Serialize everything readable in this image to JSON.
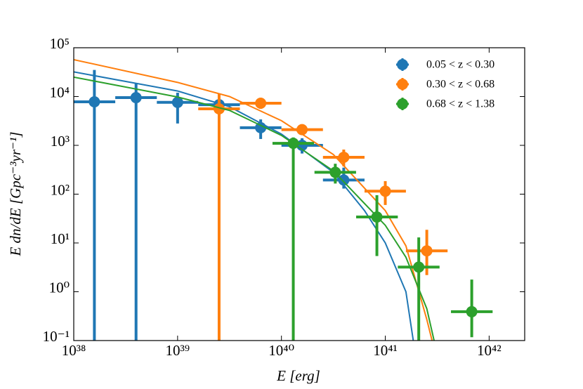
{
  "chart_data": {
    "type": "errorbar",
    "xlabel": "E [erg]",
    "ylabel": "E dn/dE [Gpc⁻³yr⁻¹]",
    "xscale": "log",
    "yscale": "log",
    "xlim": [
      1e+38,
      2.2e+42
    ],
    "ylim": [
      0.1,
      100000
    ],
    "xticks": [
      {
        "value": 1e+38,
        "label": "10³⁸"
      },
      {
        "value": 1e+39,
        "label": "10³⁹"
      },
      {
        "value": 1e+40,
        "label": "10⁴⁰"
      },
      {
        "value": 1e+41,
        "label": "10⁴¹"
      },
      {
        "value": 1e+42,
        "label": "10⁴²"
      }
    ],
    "yticks": [
      {
        "value": 0.1,
        "label": "10⁻¹"
      },
      {
        "value": 1,
        "label": "10⁰"
      },
      {
        "value": 10,
        "label": "10¹"
      },
      {
        "value": 100,
        "label": "10²"
      },
      {
        "value": 1000,
        "label": "10³"
      },
      {
        "value": 10000,
        "label": "10⁴"
      },
      {
        "value": 100000,
        "label": "10⁵"
      }
    ],
    "legend": "upper right",
    "series": [
      {
        "name": "0.05 < z < 0.30",
        "color": "#1f77b4",
        "x": [
          1.58e+38,
          3.98e+38,
          1e+39,
          2.51e+39,
          6.31e+39,
          1.58e+40,
          3.98e+40
        ],
        "x_low": [
          1e+38,
          2.51e+38,
          6.31e+38,
          1.58e+39,
          3.98e+39,
          1e+40,
          2.51e+40
        ],
        "x_high": [
          2.51e+38,
          6.31e+38,
          1.58e+39,
          3.98e+39,
          1e+40,
          2.51e+40,
          6.31e+40
        ],
        "values": [
          7800,
          9500,
          7600,
          6800,
          2300,
          1000,
          195
        ],
        "y_low": [
          0,
          0,
          2800,
          5400,
          1350,
          680,
          130
        ],
        "y_high": [
          35000,
          19000,
          12000,
          8500,
          3400,
          1400,
          350
        ],
        "fit": {
          "x": [
            1e+38,
            1e+39,
            3.16e+39,
            1e+40,
            3.16e+40,
            6.31e+40,
            1e+41,
            1.58e+41,
            1.86e+41
          ],
          "values": [
            32000,
            13000,
            6200,
            1700,
            280,
            46,
            10,
            1.0,
            0.1
          ]
        }
      },
      {
        "name": "0.30 < z < 0.68",
        "color": "#ff7f0e",
        "x": [
          2.51e+39,
          6.31e+39,
          1.58e+40,
          3.98e+40,
          1e+41,
          2.51e+41
        ],
        "x_low": [
          1.58e+39,
          3.98e+39,
          1e+40,
          2.51e+40,
          6.31e+40,
          1.58e+41
        ],
        "x_high": [
          3.98e+39,
          1e+40,
          2.51e+40,
          6.31e+40,
          1.58e+41,
          3.98e+41
        ],
        "values": [
          5600,
          7300,
          2100,
          570,
          115,
          6.9
        ],
        "y_low": [
          0,
          5600,
          1650,
          370,
          60,
          2.2
        ],
        "y_high": [
          11500,
          9100,
          2700,
          820,
          185,
          18.6
        ],
        "fit": {
          "x": [
            1e+38,
            1e+39,
            3.16e+39,
            1e+40,
            3.16e+40,
            1e+41,
            1.58e+41,
            2.51e+41,
            2.82e+41
          ],
          "values": [
            57000,
            19500,
            10000,
            3200,
            650,
            46,
            8.7,
            0.27,
            0.1
          ]
        }
      },
      {
        "name": "0.68 < z < 1.38",
        "color": "#2ca02c",
        "x": [
          1.3e+40,
          3.3e+40,
          8.3e+40,
          2.1e+41,
          6.8e+41
        ],
        "x_low": [
          8.2e+39,
          2.08e+40,
          5.24e+40,
          1.32e+41,
          4.29e+41
        ],
        "x_high": [
          2.06e+40,
          5.23e+40,
          1.32e+41,
          3.33e+41,
          1.08e+42
        ],
        "values": [
          1100,
          280,
          34,
          3.2,
          0.39
        ],
        "y_low": [
          0,
          165,
          5.4,
          0,
          0.117
        ],
        "y_high": [
          1450,
          420,
          95,
          13,
          1.78
        ],
        "fit": {
          "x": [
            1e+38,
            1e+39,
            3.16e+39,
            1e+40,
            3.16e+40,
            1e+41,
            1.58e+41,
            2.51e+41,
            2.95e+41
          ],
          "values": [
            25000,
            9800,
            5200,
            1600,
            300,
            23,
            5.1,
            0.45,
            0.1
          ]
        }
      }
    ]
  }
}
